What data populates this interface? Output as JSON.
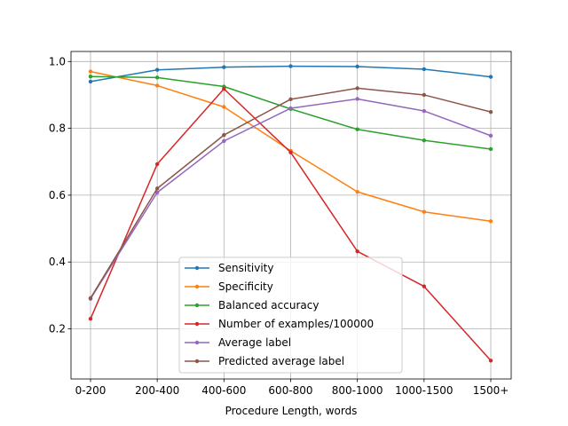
{
  "chart_data": {
    "type": "line",
    "title": "",
    "xlabel": "Procedure Length, words",
    "ylabel": "",
    "categories": [
      "0-200",
      "200-400",
      "400-600",
      "600-800",
      "800-1000",
      "1000-1500",
      "1500+"
    ],
    "ylim": [
      0.05,
      1.03
    ],
    "yticks": [
      "0.2",
      "0.4",
      "0.6",
      "0.8",
      "1.0"
    ],
    "grid": true,
    "legend_position": "lower-center",
    "series": [
      {
        "name": "Sensitivity",
        "color": "#1f77b4",
        "values": [
          0.94,
          0.975,
          0.983,
          0.986,
          0.985,
          0.977,
          0.954
        ]
      },
      {
        "name": "Specificity",
        "color": "#ff7f0e",
        "values": [
          0.97,
          0.928,
          0.864,
          0.733,
          0.61,
          0.55,
          0.522
        ]
      },
      {
        "name": "Balanced accuracy",
        "color": "#2ca02c",
        "values": [
          0.955,
          0.952,
          0.925,
          0.858,
          0.797,
          0.764,
          0.738
        ]
      },
      {
        "name": "Number of examples/100000",
        "color": "#d62728",
        "values": [
          0.23,
          0.693,
          0.918,
          0.728,
          0.432,
          0.327,
          0.105
        ]
      },
      {
        "name": "Average label",
        "color": "#9467bd",
        "values": [
          0.29,
          0.608,
          0.762,
          0.86,
          0.888,
          0.852,
          0.778
        ]
      },
      {
        "name": "Predicted average label",
        "color": "#8c564b",
        "values": [
          0.292,
          0.62,
          0.78,
          0.887,
          0.92,
          0.9,
          0.849
        ]
      }
    ]
  }
}
